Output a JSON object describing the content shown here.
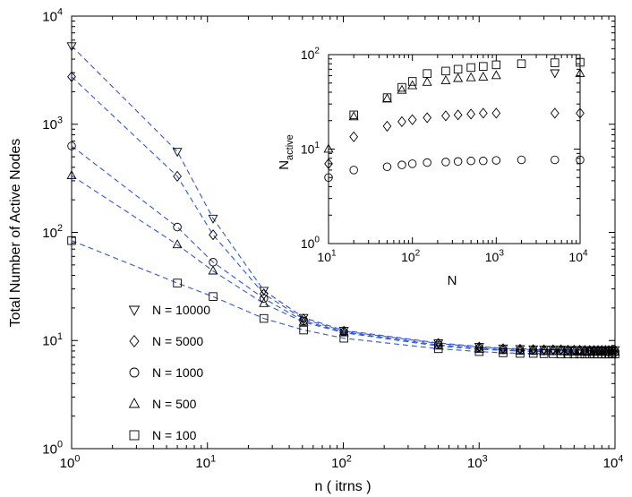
{
  "chart_data": [
    {
      "name": "main",
      "type": "scatter",
      "scale": "log-log",
      "xlabel": "n ( itrns )",
      "ylabel": "Total Number of Active Nodes",
      "xlim": [
        1,
        10000
      ],
      "ylim": [
        1,
        10000
      ],
      "x_ticks": [
        "10",
        "10",
        "10",
        "10",
        "10"
      ],
      "x_tick_exponents": [
        "0",
        "1",
        "2",
        "3",
        "4"
      ],
      "y_ticks": [
        "10",
        "10",
        "10",
        "10",
        "10"
      ],
      "y_tick_exponents": [
        "0",
        "1",
        "2",
        "3",
        "4"
      ],
      "fit_line_color": "#3355dd",
      "x": [
        1,
        6,
        11,
        26,
        51,
        101,
        501,
        1001,
        1501,
        2001,
        2501,
        3001,
        3501,
        4001,
        4501,
        5001,
        5501,
        6001,
        6501,
        7001,
        7501,
        8001,
        8501,
        9001,
        9501,
        10001
      ],
      "series": [
        {
          "name": "N = 10000",
          "marker": "triangle-down",
          "values": [
            5300,
            560,
            135,
            29,
            16.3,
            12.4,
            9.5,
            8.8,
            8.5,
            8.4,
            8.35,
            8.3,
            8.3,
            8.3,
            8.25,
            8.25,
            8.25,
            8.2,
            8.2,
            8.2,
            8.2,
            8.2,
            8.2,
            8.2,
            8.2,
            8.2
          ]
        },
        {
          "name": "N = 5000",
          "marker": "diamond",
          "values": [
            2750,
            330,
            95,
            27,
            15.8,
            12.2,
            9.4,
            8.7,
            8.4,
            8.3,
            8.25,
            8.2,
            8.2,
            8.2,
            8.15,
            8.15,
            8.15,
            8.1,
            8.1,
            8.1,
            8.1,
            8.1,
            8.1,
            8.1,
            8.1,
            8.1
          ]
        },
        {
          "name": "N = 1000",
          "marker": "circle",
          "values": [
            630,
            112,
            53,
            24.5,
            15.2,
            12.0,
            9.1,
            8.5,
            8.2,
            8.1,
            8.05,
            8.0,
            8.0,
            8.0,
            7.95,
            7.95,
            7.95,
            7.9,
            7.9,
            7.9,
            7.9,
            7.9,
            7.9,
            7.9,
            7.9,
            7.9
          ]
        },
        {
          "name": "N = 500",
          "marker": "triangle-up",
          "values": [
            335,
            77,
            44,
            22,
            14.8,
            11.8,
            8.9,
            8.3,
            8.1,
            8.0,
            7.95,
            7.9,
            7.9,
            7.9,
            7.85,
            7.85,
            7.85,
            7.8,
            7.8,
            7.8,
            7.8,
            7.8,
            7.8,
            7.8,
            7.8,
            7.8
          ]
        },
        {
          "name": "N = 100",
          "marker": "square",
          "values": [
            84,
            34,
            25.5,
            16,
            12.5,
            10.5,
            8.4,
            7.9,
            7.7,
            7.6,
            7.6,
            7.55,
            7.55,
            7.5,
            7.5,
            7.5,
            7.5,
            7.5,
            7.5,
            7.5,
            7.5,
            7.5,
            7.5,
            7.5,
            7.5,
            7.5
          ]
        }
      ],
      "legend": {
        "placement": "lower-left"
      }
    },
    {
      "name": "inset",
      "type": "scatter",
      "scale": "log-log",
      "xlabel": "N",
      "ylabel": "N",
      "ylabel_subscript": "active",
      "xlim": [
        10,
        10000
      ],
      "ylim": [
        1,
        100
      ],
      "x_ticks": [
        "10",
        "10",
        "10",
        "10"
      ],
      "x_tick_exponents": [
        "1",
        "2",
        "3",
        "4"
      ],
      "y_ticks": [
        "10",
        "10",
        "10"
      ],
      "y_tick_exponents": [
        "0",
        "1",
        "2"
      ],
      "x": [
        10,
        20,
        50,
        75,
        100,
        150,
        250,
        350,
        500,
        700,
        1000,
        2000,
        5000,
        10000
      ],
      "series": [
        {
          "name": "square",
          "marker": "square",
          "values": [
            null,
            23,
            35,
            45,
            52,
            63,
            67,
            70,
            73,
            75,
            78,
            80,
            82,
            83
          ]
        },
        {
          "name": "triangle-up",
          "marker": "triangle-up",
          "values": [
            10,
            22,
            34,
            42,
            47,
            51,
            53,
            56,
            57,
            58,
            60,
            null,
            null,
            63
          ]
        },
        {
          "name": "triangle-down",
          "marker": "triangle-down",
          "values": [
            null,
            null,
            null,
            null,
            null,
            null,
            null,
            null,
            null,
            null,
            null,
            null,
            64,
            null
          ]
        },
        {
          "name": "diamond",
          "marker": "diamond",
          "values": [
            7,
            13.5,
            17.5,
            19.5,
            20.5,
            21.5,
            22.5,
            23,
            23.5,
            24,
            24,
            null,
            24,
            24
          ]
        },
        {
          "name": "circle",
          "marker": "circle",
          "values": [
            5,
            6,
            6.5,
            6.8,
            7.0,
            7.2,
            7.3,
            7.4,
            7.5,
            7.5,
            7.6,
            7.7,
            7.7,
            7.7
          ]
        }
      ]
    }
  ]
}
